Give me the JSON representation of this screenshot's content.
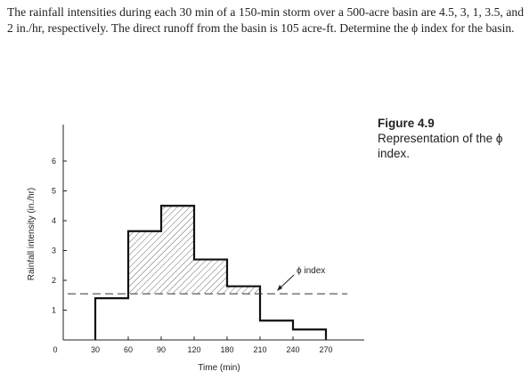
{
  "problem": {
    "text": "The rainfall intensities during each 30 min of a 150-min storm over a 500-acre basin are 4.5, 3, 1, 3.5, and 2 in./hr, respectively. The direct runoff from the basin is 105 acre-ft. Determine the ϕ index for the basin."
  },
  "caption": {
    "figure": "Figure 4.9",
    "text": "Representation of the ϕ index."
  },
  "chart_data": {
    "type": "bar",
    "title": "",
    "xlabel": "Time (min)",
    "ylabel": "Rainfall intensity (in./hr)",
    "xlim": [
      0,
      300
    ],
    "ylim": [
      0,
      7
    ],
    "x_ticks": [
      0,
      30,
      60,
      90,
      120,
      180,
      210,
      240,
      270
    ],
    "x_tick_labels": [
      "0",
      "30",
      "60",
      "90",
      "120",
      "180",
      "210",
      "240",
      "270"
    ],
    "y_ticks": [
      1,
      2,
      3,
      4,
      5,
      6
    ],
    "y_tick_labels": [
      "1",
      "2",
      "3",
      "4",
      "5",
      "6"
    ],
    "series": [
      {
        "steps": [
          {
            "label": "30",
            "value": 1.4
          },
          {
            "label": "60",
            "value": 3.65
          },
          {
            "label": "90",
            "value": 4.5
          },
          {
            "label": "120",
            "value": 2.7
          },
          {
            "label": "180",
            "value": 1.8
          },
          {
            "label": "210",
            "value": 0.65
          },
          {
            "label": "240",
            "value": 0.35
          }
        ],
        "end_label": "270"
      }
    ],
    "phi_index": {
      "value": 1.55,
      "label": "ϕ index"
    },
    "hatched_excess": true,
    "grid": false,
    "legend": "none"
  }
}
